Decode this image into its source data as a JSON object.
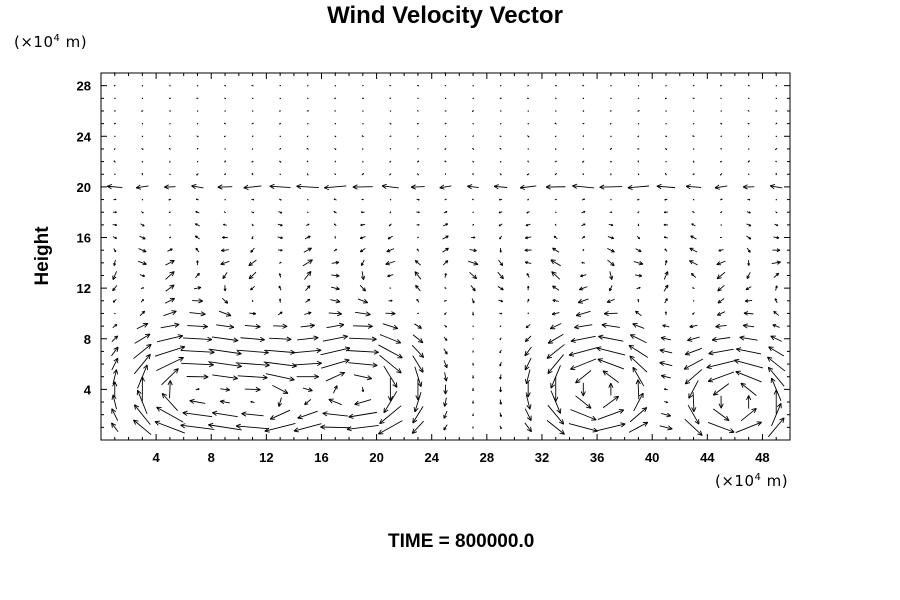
{
  "page": {
    "title": "Wind Velocity Vector",
    "y_unit_prefix": "(×10",
    "y_unit_exp": "4",
    "y_unit_suffix": " m)",
    "x_unit_prefix": "(×10",
    "x_unit_exp": "4",
    "x_unit_suffix": " m)",
    "y_axis_label": "Height",
    "time_label": "TIME = 800000.0"
  },
  "chart_data": {
    "type": "vector_field",
    "title": "Wind Velocity Vector",
    "xlabel": "(×10^4 m)",
    "ylabel": "Height",
    "xlim": [
      0,
      50
    ],
    "ylim": [
      0,
      29
    ],
    "xticks": [
      4,
      8,
      12,
      16,
      20,
      24,
      28,
      32,
      36,
      40,
      44,
      48
    ],
    "yticks": [
      4,
      8,
      12,
      16,
      20,
      24,
      28
    ],
    "grid": false,
    "arrow_color": "#000000",
    "grid_spacing": {
      "dx": 2,
      "dy": 1
    },
    "annotation": "TIME = 800000.0",
    "eddies": [
      {
        "x_center": 6,
        "y_center": 4,
        "direction": "clockwise"
      },
      {
        "x_center": 12,
        "y_center": 3,
        "direction": "clockwise"
      },
      {
        "x_center": 19,
        "y_center": 4,
        "direction": "clockwise"
      },
      {
        "x_center": 36,
        "y_center": 4,
        "direction": "counter-clockwise"
      },
      {
        "x_center": 46,
        "y_center": 3,
        "direction": "counter-clockwise"
      }
    ],
    "jet_level": 20,
    "jet_direction": "westward"
  }
}
